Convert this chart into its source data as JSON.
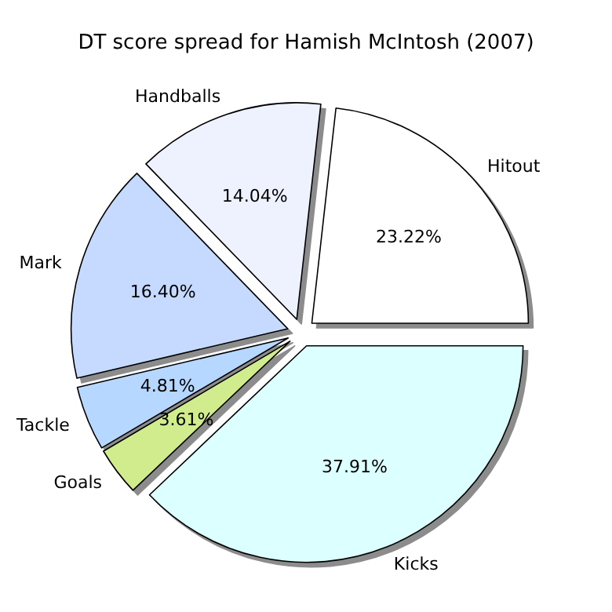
{
  "chart_data": {
    "type": "pie",
    "title": "DT score spread for Hamish McIntosh (2007)",
    "categories": [
      "Hitout",
      "Handballs",
      "Mark",
      "Tackle",
      "Goals",
      "Kicks"
    ],
    "values": [
      23.22,
      14.04,
      16.4,
      4.81,
      3.61,
      37.91
    ],
    "value_labels": [
      "23.22%",
      "14.04%",
      "16.40%",
      "4.81%",
      "3.61%",
      "37.91%"
    ],
    "colors": [
      "#ffffff",
      "#eef2ff",
      "#c6d9ff",
      "#b6d7ff",
      "#d1ec8c",
      "#dcffff"
    ],
    "legend": false
  }
}
